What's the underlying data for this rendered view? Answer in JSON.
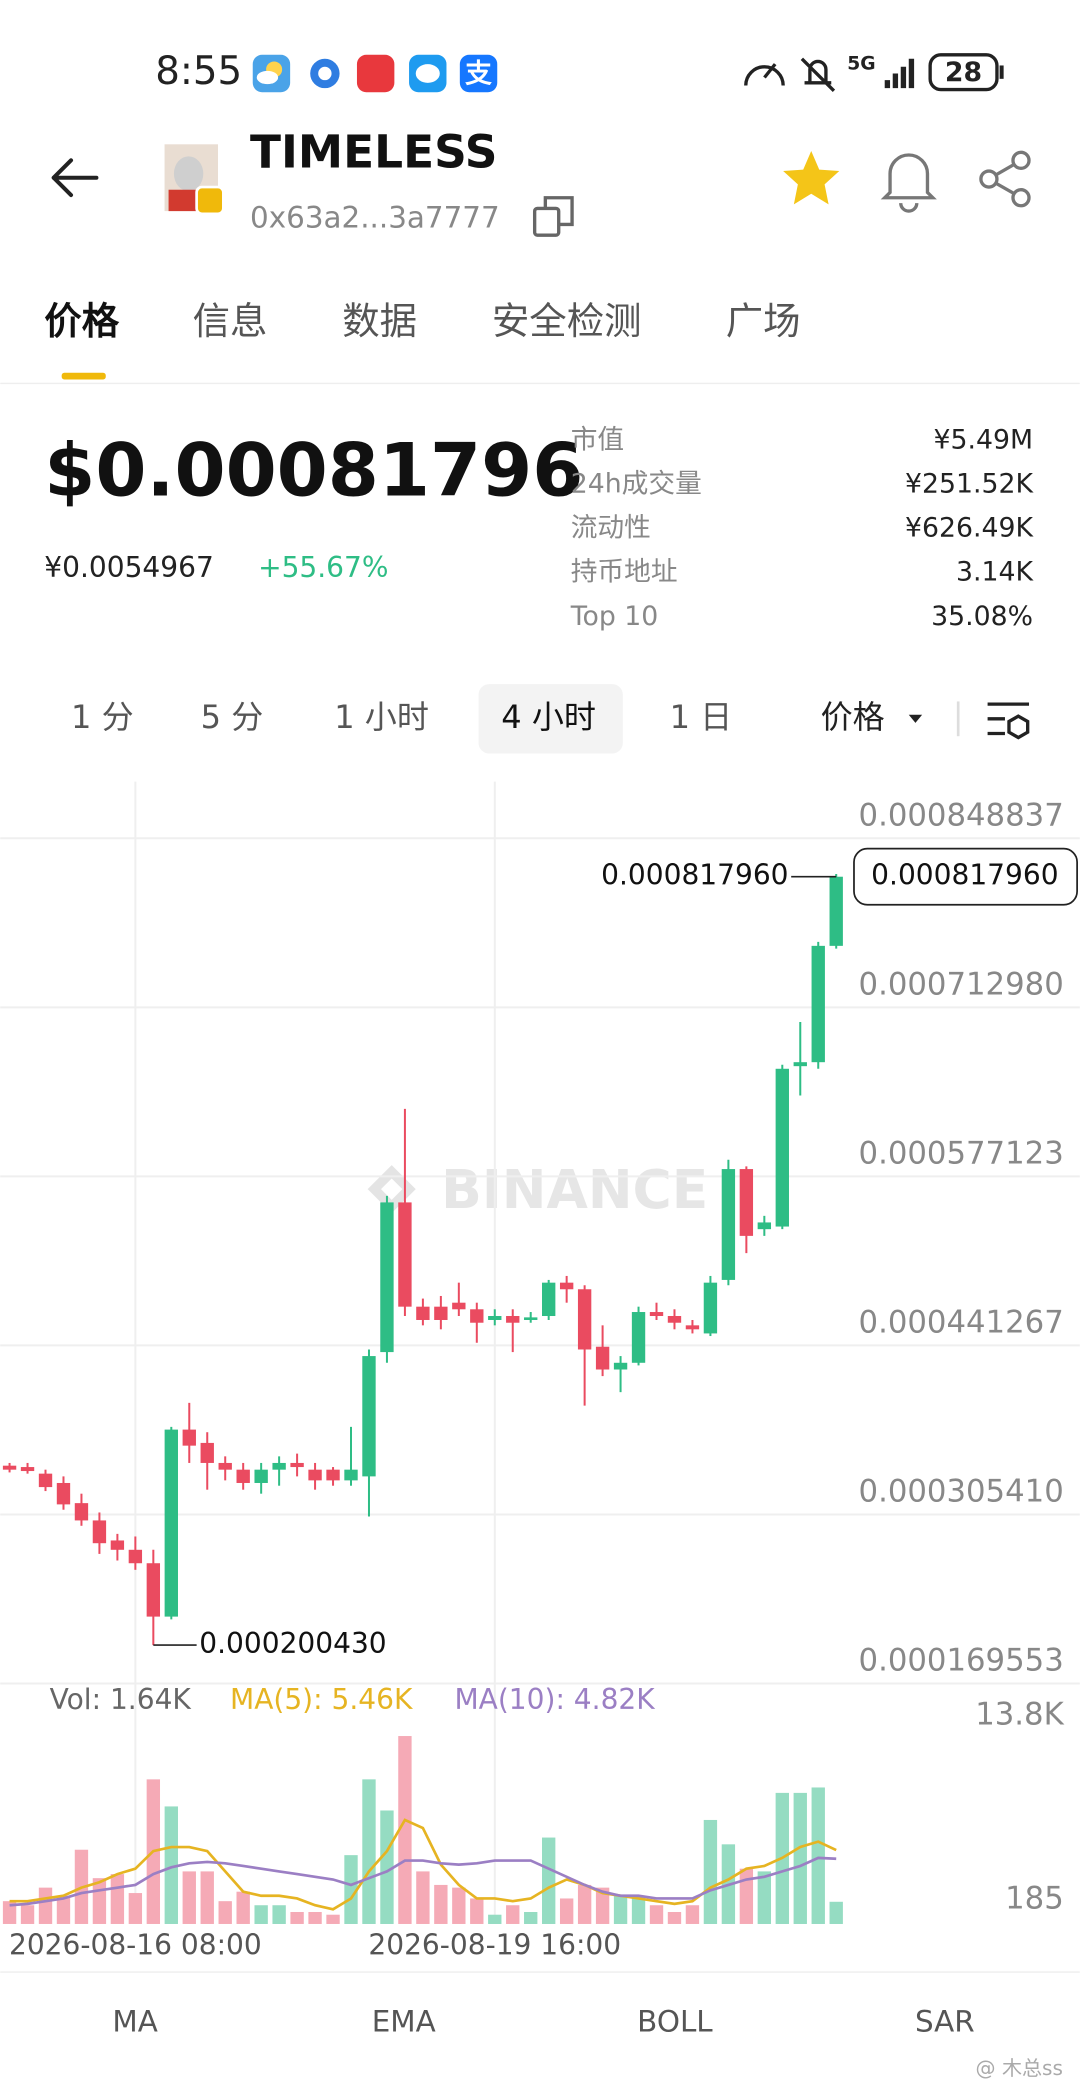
{
  "status_bar": {
    "time": "8:55",
    "network": "5G",
    "battery": "28"
  },
  "header": {
    "title": "TIMELESS",
    "address": "0x63a2...3a7777"
  },
  "tabs": [
    "价格",
    "信息",
    "数据",
    "安全检测",
    "广场"
  ],
  "active_tab": 0,
  "price": {
    "usd": "$0.00081796",
    "cny": "¥0.0054967",
    "change": "+55.67%"
  },
  "stats": [
    {
      "label": "市值",
      "value": "¥5.49M"
    },
    {
      "label": "24h成交量",
      "value": "¥251.52K"
    },
    {
      "label": "流动性",
      "value": "¥626.49K"
    },
    {
      "label": "持币地址",
      "value": "3.14K"
    },
    {
      "label": "Top 10",
      "value": "35.08%"
    }
  ],
  "intervals": [
    "1 分",
    "5 分",
    "1 小时",
    "4 小时",
    "1 日"
  ],
  "active_interval": 3,
  "chart_mode": "价格",
  "indicators": [
    "MA",
    "EMA",
    "BOLL",
    "SAR"
  ],
  "footer_watermark": "@ 木总ss",
  "chart_data": [
    {
      "type": "candlestick",
      "watermark": "BINANCE",
      "up_color": "#2ebd85",
      "down_color": "#ea4b60",
      "grid": true,
      "categories": [
        null,
        null,
        null,
        null,
        null,
        null,
        null,
        "2026-08-16 08:00",
        null,
        null,
        null,
        null,
        null,
        null,
        null,
        null,
        null,
        null,
        null,
        null,
        null,
        null,
        null,
        null,
        null,
        null,
        null,
        "2026-08-19 16:00",
        null,
        null,
        null,
        null,
        null,
        null,
        null,
        null,
        null,
        null,
        null,
        null,
        null,
        null,
        null,
        null,
        null,
        null,
        null
      ],
      "open": [
        0.0003446,
        0.0003435,
        0.0003382,
        0.0003307,
        0.0003145,
        0.0003006,
        0.0002845,
        0.000277,
        0.0002662,
        0.0002233,
        0.0003736,
        0.0003629,
        0.0003468,
        0.0003414,
        0.0003307,
        0.0003414,
        0.0003468,
        0.0003414,
        0.0003414,
        0.0003328,
        0.000336,
        0.0004359,
        0.0005562,
        0.0004724,
        0.0004724,
        0.0004756,
        0.0004703,
        0.0004617,
        0.0004649,
        0.0004617,
        0.0004649,
        0.0004917,
        0.0004864,
        0.0004402,
        0.0004219,
        0.0004273,
        0.0004681,
        0.0004649,
        0.0004574,
        0.0004509,
        0.0004939,
        0.000583,
        0.0005347,
        0.0005368,
        0.0006657,
        0.0006689,
        0.0007624
      ],
      "high": [
        0.0003468,
        0.0003468,
        0.0003414,
        0.000336,
        0.0003221,
        0.000307,
        0.0002898,
        0.0002877,
        0.000277,
        0.0003758,
        0.0003951,
        0.0003715,
        0.0003521,
        0.0003468,
        0.0003468,
        0.0003521,
        0.0003543,
        0.0003468,
        0.0003435,
        0.0003758,
        0.000438,
        0.0005615,
        0.0006314,
        0.0004789,
        0.000481,
        0.0004917,
        0.0004756,
        0.0004703,
        0.0004703,
        0.0004681,
        0.0004939,
        0.0004971,
        0.0004896,
        0.0004574,
        0.0004327,
        0.0004724,
        0.0004756,
        0.0004703,
        0.0004617,
        0.0004971,
        0.0005905,
        0.0005852,
        0.0005454,
        0.0006668,
        0.0007012,
        0.0007656,
        0.0008201
      ],
      "low": [
        0.0003392,
        0.0003382,
        0.0003242,
        0.0003092,
        0.0002963,
        0.0002737,
        0.0002684,
        0.0002609,
        0.00020043,
        0.0002211,
        0.0003468,
        0.0003253,
        0.0003328,
        0.0003253,
        0.0003221,
        0.0003285,
        0.000336,
        0.0003253,
        0.0003285,
        0.0003285,
        0.0003038,
        0.0004273,
        0.0004649,
        0.0004574,
        0.0004542,
        0.0004649,
        0.0004434,
        0.0004574,
        0.0004359,
        0.0004595,
        0.0004617,
        0.0004756,
        0.0003929,
        0.0004166,
        0.0004037,
        0.0004252,
        0.0004617,
        0.0004542,
        0.0004509,
        0.0004488,
        0.0004896,
        0.0005154,
        0.0005293,
        0.0005347,
        0.0006421,
        0.0006636,
        0.0007602
      ],
      "close": [
        0.0003414,
        0.0003403,
        0.0003274,
        0.0003135,
        0.0003006,
        0.0002823,
        0.000277,
        0.0002662,
        0.0002233,
        0.0003736,
        0.0003607,
        0.0003468,
        0.0003414,
        0.0003307,
        0.0003414,
        0.0003468,
        0.0003435,
        0.0003328,
        0.0003328,
        0.0003414,
        0.0004327,
        0.0005562,
        0.0004724,
        0.0004617,
        0.0004617,
        0.0004703,
        0.0004595,
        0.0004649,
        0.0004595,
        0.0004638,
        0.0004917,
        0.0004864,
        0.000438,
        0.0004219,
        0.0004273,
        0.0004681,
        0.0004649,
        0.0004595,
        0.0004542,
        0.0004917,
        0.000583,
        0.0005293,
        0.0005401,
        0.0006636,
        0.0006689,
        0.0007624,
        0.00081796
      ],
      "ylim": [
        0.000169553,
        0.0008944
      ],
      "yticks": [
        0.000848837,
        {
          "value": 0.00071298,
          "label": "0.000712980"
        },
        0.000577123,
        0.000441267,
        {
          "value": 0.00030541,
          "label": "0.000305410"
        },
        0.000169553
      ],
      "annotations": [
        {
          "value": 0.00081796,
          "label": "0.000817960"
        },
        {
          "value": 0.00020043,
          "label": "0.000200430"
        }
      ]
    },
    {
      "type": "bar",
      "up_color": "#95dcc2",
      "down_color": "#f5aab6",
      "series": [
        {
          "name": "Vol",
          "legend_label": "Vol: 1.64K",
          "color": "#666666",
          "values": [
            1685,
            1385,
            2685,
            2085,
            5485,
            3385,
            3685,
            2285,
            10685,
            8685,
            3885,
            3885,
            1685,
            2385,
            1385,
            1385,
            885,
            885,
            685,
            5085,
            10685,
            8385,
            13885,
            3885,
            2885,
            2685,
            1885,
            685,
            1385,
            885,
            6385,
            1885,
            2885,
            2685,
            2085,
            2085,
            1385,
            885,
            1385,
            7685,
            5885,
            4085,
            3885,
            9685,
            9685,
            10085,
            1640
          ]
        },
        {
          "name": "MA(5)",
          "legend_label": "MA(5): 5.46K",
          "color": "#e6b422",
          "values": [
            1685,
            1685,
            1885,
            2085,
            2685,
            3085,
            3685,
            4085,
            5385,
            5685,
            5685,
            5385,
            3885,
            2385,
            2085,
            2085,
            1885,
            1385,
            1085,
            1885,
            3885,
            5385,
            7685,
            7085,
            4385,
            2885,
            1885,
            1885,
            1685,
            1885,
            2685,
            3285,
            2885,
            2285,
            2085,
            1885,
            1685,
            1485,
            1685,
            2685,
            3285,
            4085,
            4285,
            4885,
            5685,
            6085,
            5460
          ]
        },
        {
          "name": "MA(10)",
          "legend_label": "MA(10): 4.82K",
          "color": "#9b7fc4",
          "values": [
            1385,
            1485,
            1685,
            1885,
            2285,
            2485,
            2685,
            2885,
            3685,
            4185,
            4485,
            4585,
            4485,
            4285,
            4085,
            3885,
            3685,
            3485,
            3285,
            2885,
            3385,
            3885,
            4685,
            4685,
            4485,
            4385,
            4485,
            4685,
            4685,
            4685,
            4085,
            3485,
            2885,
            2385,
            2085,
            2085,
            1885,
            1885,
            1885,
            2485,
            2885,
            3285,
            3485,
            3885,
            4285,
            4885,
            4820
          ]
        }
      ],
      "ylim": [
        0,
        15300
      ],
      "yticks": [
        {
          "value": 13800,
          "label": "13.8K"
        },
        185
      ]
    }
  ]
}
